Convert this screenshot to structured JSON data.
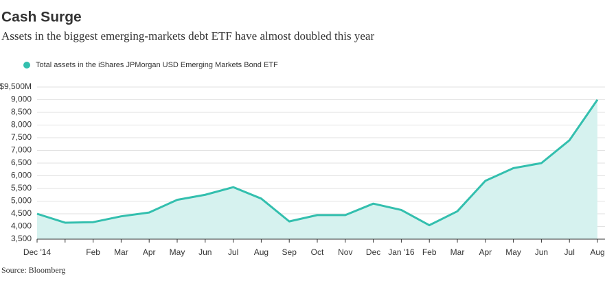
{
  "chart_data": {
    "type": "area",
    "title": "Cash Surge",
    "subtitle": "Assets in the biggest emerging-markets debt ETF have almost doubled this year",
    "source": "Source: Bloomberg",
    "x": [
      "2014-12",
      "2015-01",
      "2015-02",
      "2015-03",
      "2015-04",
      "2015-05",
      "2015-06",
      "2015-07",
      "2015-08",
      "2015-09",
      "2015-10",
      "2015-11",
      "2015-12",
      "2016-01",
      "2016-02",
      "2016-03",
      "2016-04",
      "2016-05",
      "2016-06",
      "2016-07",
      "2016-08"
    ],
    "series": [
      {
        "name": "Total assets in the iShares JPMorgan USD Emerging Markets Bond ETF",
        "color": "#33bfae",
        "values": [
          4500,
          4150,
          4170,
          4400,
          4550,
          5050,
          5250,
          5550,
          5100,
          4200,
          4450,
          4450,
          4900,
          4650,
          4050,
          4600,
          5800,
          6300,
          6500,
          7400,
          9000
        ]
      }
    ],
    "area_color": "#d6f2ef",
    "xlim": [
      "2014-12",
      "2016-08"
    ],
    "xticks": [
      {
        "value": "2014-12",
        "label": "Dec '14"
      },
      {
        "value": "2015-01",
        "label": null
      },
      {
        "value": "2015-02",
        "label": "Feb"
      },
      {
        "value": "2015-03",
        "label": "Mar"
      },
      {
        "value": "2015-04",
        "label": "Apr"
      },
      {
        "value": "2015-05",
        "label": "May"
      },
      {
        "value": "2015-06",
        "label": "Jun"
      },
      {
        "value": "2015-07",
        "label": "Jul"
      },
      {
        "value": "2015-08",
        "label": "Aug"
      },
      {
        "value": "2015-09",
        "label": "Sep"
      },
      {
        "value": "2015-10",
        "label": "Oct"
      },
      {
        "value": "2015-11",
        "label": "Nov"
      },
      {
        "value": "2015-12",
        "label": "Dec"
      },
      {
        "value": "2016-01",
        "label": "Jan '16"
      },
      {
        "value": "2016-02",
        "label": "Feb"
      },
      {
        "value": "2016-03",
        "label": "Mar"
      },
      {
        "value": "2016-04",
        "label": "Apr"
      },
      {
        "value": "2016-05",
        "label": "May"
      },
      {
        "value": "2016-06",
        "label": "Jun"
      },
      {
        "value": "2016-07",
        "label": "Jul"
      },
      {
        "value": "2016-08",
        "label": "Aug"
      }
    ],
    "ylim": [
      3500,
      9500
    ],
    "yticks": [
      {
        "value": 3500,
        "label": "3,500"
      },
      {
        "value": 4000,
        "label": "4,000"
      },
      {
        "value": 4500,
        "label": "4,500"
      },
      {
        "value": 5000,
        "label": "5,000"
      },
      {
        "value": 5500,
        "label": "5,500"
      },
      {
        "value": 6000,
        "label": "6,000"
      },
      {
        "value": 6500,
        "label": "6,500"
      },
      {
        "value": 7000,
        "label": "7,000"
      },
      {
        "value": 7500,
        "label": "7,500"
      },
      {
        "value": 8000,
        "label": "8,000"
      },
      {
        "value": 8500,
        "label": "8,500"
      },
      {
        "value": 9000,
        "label": "9,000"
      },
      {
        "value": 9500,
        "label": "$9,500M"
      }
    ],
    "grid": true,
    "legend": "top-left"
  }
}
